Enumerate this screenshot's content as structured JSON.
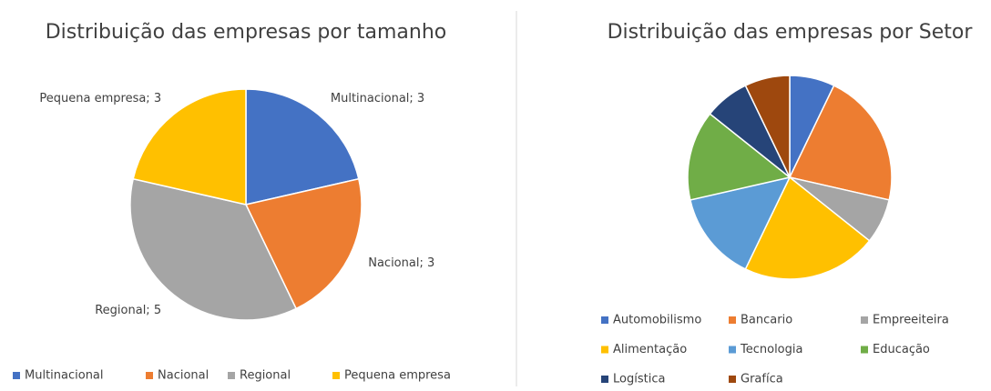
{
  "chart_data": [
    {
      "type": "pie",
      "title": "Distribuição das empresas por tamanho",
      "categories": [
        "Multinacional",
        "Nacional",
        "Regional",
        "Pequena empresa"
      ],
      "values": [
        3,
        3,
        5,
        3
      ],
      "value_labels": [
        "Multinacional; 3",
        "Nacional; 3",
        "Regional; 5",
        "Pequena empresa; 3"
      ],
      "colors": [
        "#4472c4",
        "#ed7d31",
        "#a5a5a5",
        "#ffc000"
      ],
      "legend": "bottom"
    },
    {
      "type": "pie",
      "title": "Distribuição das empresas por Setor",
      "categories": [
        "Automobilismo",
        "Bancario",
        "Empreeiteira",
        "Alimentação",
        "Tecnologia",
        "Educação",
        "Logística",
        "Grafíca"
      ],
      "values": [
        1,
        3,
        1,
        3,
        2,
        2,
        1,
        1
      ],
      "colors": [
        "#4472c4",
        "#ed7d31",
        "#a5a5a5",
        "#ffc000",
        "#5b9bd5",
        "#70ad47",
        "#264478",
        "#9e480e"
      ],
      "legend": "bottom"
    }
  ]
}
